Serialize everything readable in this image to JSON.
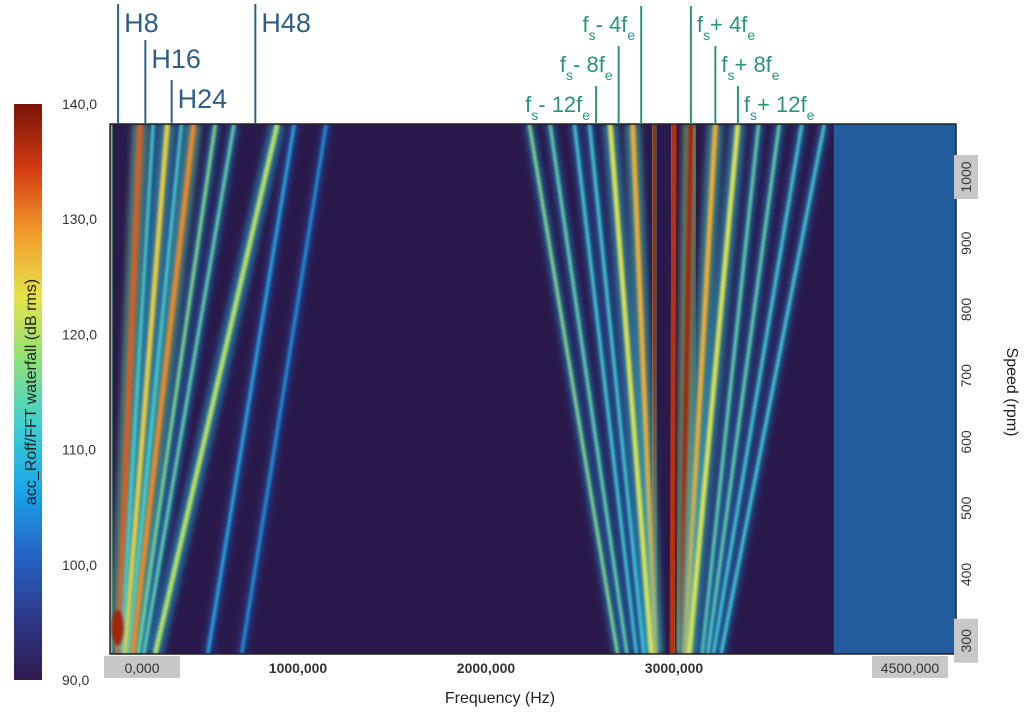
{
  "chart_data": {
    "type": "heatmap",
    "subtype": "order/frequency waterfall spectrogram",
    "xlabel": "Frequency (Hz)",
    "ylabel": "Speed (rpm)",
    "colorbar_label": "acc_Roff/FFT waterfall (dB rms)",
    "xlim": [
      0,
      4500
    ],
    "ylim_rpm": [
      280,
      1080
    ],
    "x_ticks": [
      {
        "value": 0,
        "label": "0,000",
        "highlighted": true
      },
      {
        "value": 1000,
        "label": "1000,000",
        "highlighted": false
      },
      {
        "value": 2000,
        "label": "2000,000",
        "highlighted": false
      },
      {
        "value": 3000,
        "label": "3000,000",
        "highlighted": false
      },
      {
        "value": 4500,
        "label": "4500,000",
        "highlighted": true
      }
    ],
    "y_ticks": [
      {
        "value": 300,
        "label": "300",
        "highlighted": true
      },
      {
        "value": 400,
        "label": "400",
        "highlighted": false
      },
      {
        "value": 500,
        "label": "500",
        "highlighted": false
      },
      {
        "value": 600,
        "label": "600",
        "highlighted": false
      },
      {
        "value": 700,
        "label": "700",
        "highlighted": false
      },
      {
        "value": 800,
        "label": "800",
        "highlighted": false
      },
      {
        "value": 900,
        "label": "900",
        "highlighted": false
      },
      {
        "value": 1000,
        "label": "1000",
        "highlighted": true
      }
    ],
    "colorbar": {
      "range": [
        90,
        140
      ],
      "ticks": [
        {
          "value": 90,
          "label": "90,0"
        },
        {
          "value": 100,
          "label": "100,0"
        },
        {
          "value": 110,
          "label": "110,0"
        },
        {
          "value": 120,
          "label": "120,0"
        },
        {
          "value": 130,
          "label": "130,0"
        },
        {
          "value": 140,
          "label": "140,0"
        }
      ],
      "colors": [
        "#2e1a4f",
        "#2d3a8c",
        "#2466c8",
        "#1aa7e8",
        "#3fd0d0",
        "#8fe07a",
        "#e6e24a",
        "#f39a2a",
        "#d23a12",
        "#7a1508"
      ]
    },
    "background_color": "#2a1a4c",
    "harmonic_lines": [
      {
        "label": "H8",
        "f_at_1080": 160,
        "f_at_280": 41,
        "level": 0.85
      },
      {
        "label": "H16",
        "f_at_1080": 305,
        "f_at_280": 80,
        "level": 0.7
      },
      {
        "label": "H24",
        "f_at_1080": 445,
        "f_at_280": 120,
        "level": 0.8
      },
      {
        "label": "H48",
        "f_at_1080": 890,
        "f_at_280": 240,
        "level": 0.6
      }
    ],
    "unlabeled_orders": [
      {
        "f_at_1080": 10,
        "f_at_280": 5,
        "level": 0.55
      },
      {
        "f_at_1080": 230,
        "f_at_280": 60,
        "level": 0.45
      },
      {
        "f_at_1080": 380,
        "f_at_280": 100,
        "level": 0.45
      },
      {
        "f_at_1080": 560,
        "f_at_280": 150,
        "level": 0.55
      },
      {
        "f_at_1080": 660,
        "f_at_280": 180,
        "level": 0.5
      },
      {
        "f_at_1080": 980,
        "f_at_280": 520,
        "level": 0.35
      },
      {
        "f_at_1080": 1150,
        "f_at_280": 700,
        "level": 0.3
      }
    ],
    "carrier_frequency": 3000,
    "sideband_lines": [
      {
        "label": "fs- 4fe",
        "sub": "s",
        "pre": "f",
        "op": "- 4f",
        "sub2": "e",
        "f_at_1080": 2900,
        "f_at_280": 2890,
        "level": 0.95
      },
      {
        "label": "fs+ 4fe",
        "sub": "s",
        "pre": "f",
        "op": "+ 4f",
        "sub2": "e",
        "f_at_1080": 3090,
        "f_at_280": 3040,
        "level": 0.95
      },
      {
        "label": "fs- 8fe",
        "sub": "s",
        "pre": "f",
        "op": "- 8f",
        "sub2": "e",
        "f_at_1080": 2780,
        "f_at_280": 2900,
        "level": 0.75
      },
      {
        "label": "fs+ 8fe",
        "sub": "s",
        "pre": "f",
        "op": "+ 8f",
        "sub2": "e",
        "f_at_1080": 3220,
        "f_at_280": 3060,
        "level": 0.75
      },
      {
        "label": "fs- 12fe",
        "sub": "s",
        "pre": "f",
        "op": "- 12f",
        "sub2": "e",
        "f_at_1080": 2660,
        "f_at_280": 2880,
        "level": 0.65
      },
      {
        "label": "fs+ 12fe",
        "sub": "s",
        "pre": "f",
        "op": "+ 12f",
        "sub2": "e",
        "f_at_1080": 3340,
        "f_at_280": 3080,
        "level": 0.65
      }
    ],
    "extra_sidebands": [
      {
        "f_at_1080": 2230,
        "f_at_280": 2700,
        "level": 0.55
      },
      {
        "f_at_1080": 2340,
        "f_at_280": 2750,
        "level": 0.5
      },
      {
        "f_at_1080": 2470,
        "f_at_280": 2800,
        "level": 0.45
      },
      {
        "f_at_1080": 2550,
        "f_at_280": 2840,
        "level": 0.45
      },
      {
        "f_at_1080": 3450,
        "f_at_280": 3150,
        "level": 0.5
      },
      {
        "f_at_1080": 3560,
        "f_at_280": 3180,
        "level": 0.5
      },
      {
        "f_at_1080": 3680,
        "f_at_280": 3210,
        "level": 0.45
      },
      {
        "f_at_1080": 3800,
        "f_at_280": 3250,
        "level": 0.45
      }
    ],
    "carrier_line": {
      "f_at_1080": 3000,
      "f_at_280": 2990,
      "level": 1.0
    },
    "hotspot": {
      "f": 40,
      "rpm": 320,
      "level": 1.0
    },
    "broadband_region": {
      "f_from": 3850,
      "f_to": 4500,
      "level": 0.3
    }
  }
}
